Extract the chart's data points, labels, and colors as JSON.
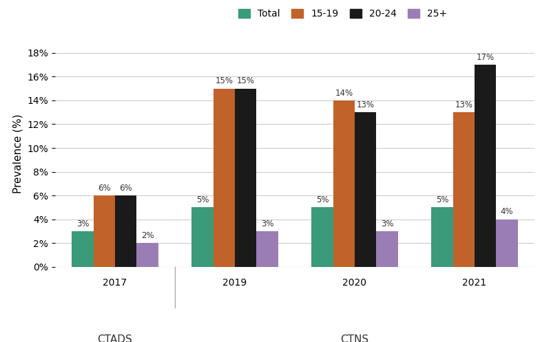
{
  "years": [
    "2017",
    "2019",
    "2020",
    "2021"
  ],
  "series": {
    "Total": [
      3,
      5,
      5,
      5
    ],
    "15-19": [
      6,
      15,
      14,
      13
    ],
    "20-24": [
      6,
      15,
      13,
      17
    ],
    "25+": [
      2,
      3,
      3,
      4
    ]
  },
  "colors": {
    "Total": "#3a9a7a",
    "15-19": "#c0622a",
    "20-24": "#1a1a1a",
    "25+": "#9b7db5"
  },
  "ylabel": "Prevalence (%)",
  "ylim": [
    0,
    19
  ],
  "yticks": [
    0,
    2,
    4,
    6,
    8,
    10,
    12,
    14,
    16,
    18
  ],
  "ytick_labels": [
    "0%",
    "2%",
    "4%",
    "6%",
    "8%",
    "10%",
    "12%",
    "14%",
    "16%",
    "18%"
  ],
  "bar_width": 0.18,
  "background_color": "#ffffff",
  "grid_color": "#cccccc",
  "legend_order": [
    "Total",
    "15-19",
    "20-24",
    "25+"
  ],
  "ctads_label": "CTADS",
  "ctns_label": "CTNS"
}
